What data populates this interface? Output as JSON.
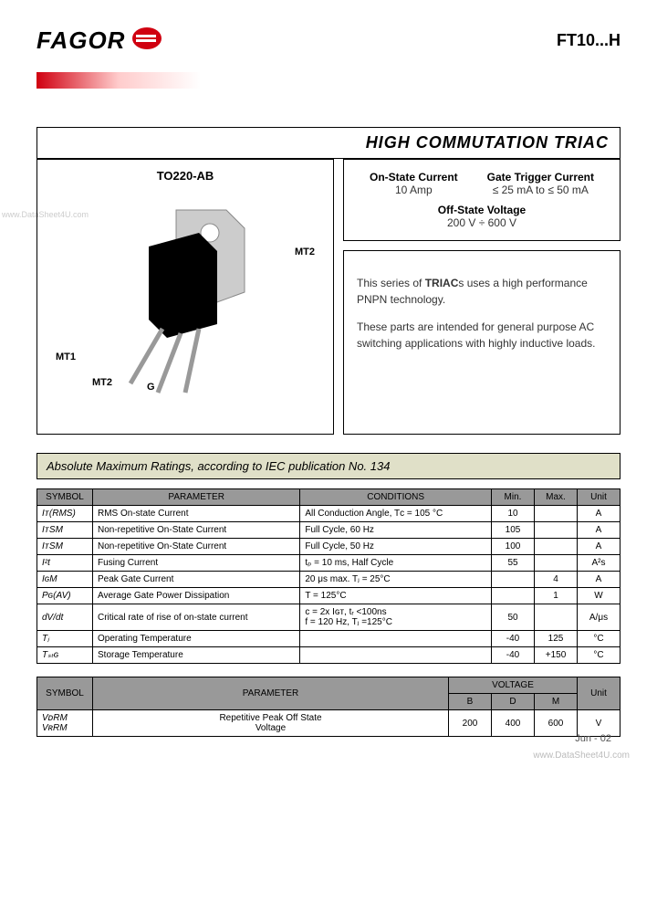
{
  "header": {
    "brand": "FAGOR",
    "brand_colors": {
      "text": "#000000",
      "icon_outer": "#d00010",
      "icon_inner": "#ffffff"
    },
    "part_number": "FT10...H"
  },
  "title_bar": {
    "gradient_colors": [
      "#d00010",
      "#ffcccc",
      "#ffffff"
    ],
    "title": "HIGH COMMUTATION TRIAC"
  },
  "package": {
    "name": "TO220-AB",
    "pin_mt2_top": "MT2",
    "pin_mt1": "MT1",
    "pin_mt2": "MT2",
    "pin_g": "G",
    "body_color": "#000000",
    "tab_color": "#cccccc",
    "lead_color": "#bbbbbb"
  },
  "spec_box": {
    "on_state_label": "On-State Current",
    "on_state_val": "10 Amp",
    "gate_label": "Gate Trigger Current",
    "gate_val": "≤ 25 mA to ≤ 50 mA",
    "off_label": "Off-State Voltage",
    "off_val": "200 V ÷ 600 V"
  },
  "description": {
    "p1a": "This series of ",
    "p1b": "TRIAC",
    "p1c": "s uses a high performance PNPN technology.",
    "p2": "These parts are intended for general purpose AC switching applications with highly inductive loads."
  },
  "section1_title": "Absolute Maximum Ratings, according to IEC publication No. 134",
  "table1": {
    "headers": [
      "SYMBOL",
      "PARAMETER",
      "CONDITIONS",
      "Min.",
      "Max.",
      "Unit"
    ],
    "col_bg": "#999999",
    "rows": [
      [
        "Iᴛ(RMS)",
        "RMS On-state Current",
        "All Conduction Angle, Tᴄ = 105 °C",
        "10",
        "",
        "A"
      ],
      [
        "IᴛSM",
        "Non-repetitive On-State Current",
        "Full Cycle, 60 Hz",
        "105",
        "",
        "A"
      ],
      [
        "IᴛSM",
        "Non-repetitive On-State Current",
        "Full Cycle, 50 Hz",
        "100",
        "",
        "A"
      ],
      [
        "I²t",
        "Fusing Current",
        "tₚ = 10 ms, Half Cycle",
        "55",
        "",
        "A²s"
      ],
      [
        "IɢM",
        "Peak Gate Current",
        "20 μs max.   Tⱼ = 25°C",
        "",
        "4",
        "A"
      ],
      [
        "Pɢ(AV)",
        "Average Gate Power Dissipation",
        "T = 125°C",
        "",
        "1",
        "W"
      ],
      [
        "dV/dt",
        "Critical rate of rise of on-state current",
        "c = 2x Iɢᴛ, tᵣ <100ns\nf = 120 Hz, Tⱼ =125°C",
        "50",
        "",
        "A/μs"
      ],
      [
        "Tⱼ",
        "Operating Temperature",
        "",
        "-40",
        "125",
        "°C"
      ],
      [
        "Tₛₜɢ",
        "Storage Temperature",
        "",
        "-40",
        "+150",
        "°C"
      ]
    ]
  },
  "table2": {
    "headers_top": [
      "SYMBOL",
      "PARAMETER",
      "VOLTAGE",
      "Unit"
    ],
    "headers_sub": [
      "B",
      "D",
      "M"
    ],
    "rows": [
      [
        "VᴅRM\nVʀRM",
        "Repetitive Peak Off State\nVoltage",
        "200",
        "400",
        "600",
        "V"
      ]
    ]
  },
  "footer": {
    "date": "Jun - 02",
    "watermark": "www.DataSheet4U.com",
    "watermark_side": "www.DataSheet4U.com"
  }
}
